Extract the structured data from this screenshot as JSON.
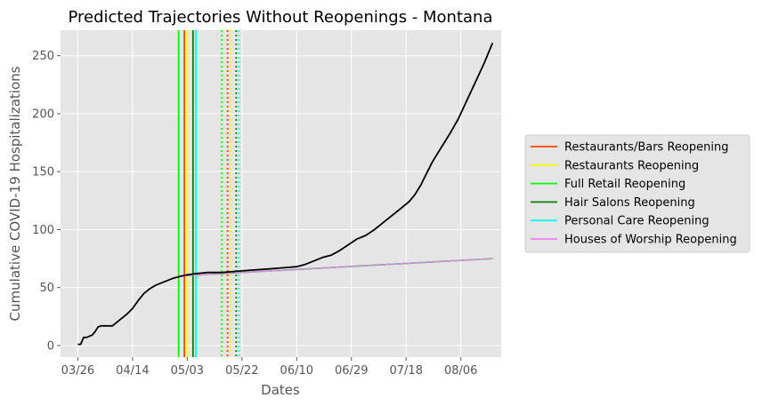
{
  "chart_data": {
    "type": "line",
    "title": "Predicted Trajectories Without Reopenings - Montana",
    "xlabel": "Dates",
    "ylabel": "Cumulative COVID-19 Hospitalizations",
    "x_tick_labels": [
      "03/26",
      "04/14",
      "05/03",
      "05/22",
      "06/10",
      "06/29",
      "07/18",
      "08/06"
    ],
    "x_tick_dates": [
      "2020-03-26",
      "2020-04-14",
      "2020-05-03",
      "2020-05-22",
      "2020-06-10",
      "2020-06-29",
      "2020-07-18",
      "2020-08-06"
    ],
    "xlim": [
      "2020-03-20",
      "2020-08-20"
    ],
    "y_ticks": [
      0,
      50,
      100,
      150,
      200,
      250
    ],
    "ylim": [
      -10,
      272
    ],
    "grid": true,
    "legend_position": "right",
    "series": [
      {
        "name": "",
        "color": "#000000",
        "style": "solid",
        "points": [
          [
            "2020-03-26",
            1
          ],
          [
            "2020-03-27",
            1
          ],
          [
            "2020-03-28",
            7
          ],
          [
            "2020-03-29",
            7
          ],
          [
            "2020-03-31",
            9
          ],
          [
            "2020-04-01",
            12
          ],
          [
            "2020-04-02",
            16
          ],
          [
            "2020-04-03",
            17
          ],
          [
            "2020-04-06",
            17
          ],
          [
            "2020-04-07",
            17
          ],
          [
            "2020-04-08",
            19
          ],
          [
            "2020-04-10",
            23
          ],
          [
            "2020-04-12",
            27
          ],
          [
            "2020-04-14",
            32
          ],
          [
            "2020-04-16",
            39
          ],
          [
            "2020-04-18",
            45
          ],
          [
            "2020-04-20",
            49
          ],
          [
            "2020-04-22",
            52
          ],
          [
            "2020-04-25",
            55
          ],
          [
            "2020-04-28",
            58
          ],
          [
            "2020-05-01",
            60
          ],
          [
            "2020-05-03",
            61
          ],
          [
            "2020-05-06",
            62
          ],
          [
            "2020-05-10",
            63
          ],
          [
            "2020-05-15",
            63
          ],
          [
            "2020-05-20",
            64
          ],
          [
            "2020-05-25",
            65
          ],
          [
            "2020-05-31",
            66
          ],
          [
            "2020-06-05",
            67
          ],
          [
            "2020-06-10",
            68
          ],
          [
            "2020-06-13",
            70
          ],
          [
            "2020-06-16",
            73
          ],
          [
            "2020-06-19",
            76
          ],
          [
            "2020-06-22",
            78
          ],
          [
            "2020-06-25",
            82
          ],
          [
            "2020-06-28",
            87
          ],
          [
            "2020-07-01",
            92
          ],
          [
            "2020-07-04",
            95
          ],
          [
            "2020-07-07",
            100
          ],
          [
            "2020-07-10",
            106
          ],
          [
            "2020-07-13",
            112
          ],
          [
            "2020-07-16",
            118
          ],
          [
            "2020-07-19",
            124
          ],
          [
            "2020-07-21",
            130
          ],
          [
            "2020-07-23",
            138
          ],
          [
            "2020-07-25",
            148
          ],
          [
            "2020-07-27",
            158
          ],
          [
            "2020-07-29",
            166
          ],
          [
            "2020-07-31",
            174
          ],
          [
            "2020-08-02",
            182
          ],
          [
            "2020-08-05",
            195
          ],
          [
            "2020-08-08",
            211
          ],
          [
            "2020-08-11",
            227
          ],
          [
            "2020-08-14",
            243
          ],
          [
            "2020-08-17",
            261
          ]
        ]
      },
      {
        "name": "",
        "color": "#999999",
        "style": "solid",
        "points": [
          [
            "2020-04-30",
            60
          ],
          [
            "2020-08-17",
            75
          ]
        ]
      },
      {
        "name": "Restaurants/Bars Reopening",
        "color": "#ff4500",
        "style": "dashed",
        "points": [
          [
            "2020-04-30",
            60
          ],
          [
            "2020-08-17",
            75
          ]
        ]
      },
      {
        "name": "Restaurants Reopening",
        "color": "#ffff00",
        "style": "dashed",
        "points": [
          [
            "2020-04-30",
            60
          ],
          [
            "2020-08-17",
            75
          ]
        ]
      },
      {
        "name": "Full Retail Reopening",
        "color": "#00ff00",
        "style": "dashed",
        "points": [
          [
            "2020-04-30",
            60
          ],
          [
            "2020-08-17",
            75
          ]
        ]
      },
      {
        "name": "Hair Salons Reopening",
        "color": "#008000",
        "style": "dashed",
        "points": [
          [
            "2020-04-30",
            60
          ],
          [
            "2020-08-17",
            75
          ]
        ]
      },
      {
        "name": "Personal Care Reopening",
        "color": "#00ffff",
        "style": "dashed",
        "points": [
          [
            "2020-04-30",
            60
          ],
          [
            "2020-08-17",
            75
          ]
        ]
      },
      {
        "name": "Houses of Worship Reopening",
        "color": "#ee82ee",
        "style": "dashed",
        "points": [
          [
            "2020-04-30",
            60
          ],
          [
            "2020-08-17",
            75
          ]
        ]
      }
    ],
    "vertical_lines": [
      {
        "date": "2020-04-30",
        "color": "#00ff00",
        "style": "solid"
      },
      {
        "date": "2020-05-02",
        "color": "#ff4500",
        "style": "solid"
      },
      {
        "date": "2020-05-03",
        "color": "#ffff00",
        "style": "solid"
      },
      {
        "date": "2020-05-05",
        "color": "#008000",
        "style": "solid"
      },
      {
        "date": "2020-05-06",
        "color": "#00ffff",
        "style": "solid"
      },
      {
        "date": "2020-05-15",
        "color": "#00ff00",
        "style": "dotted"
      },
      {
        "date": "2020-05-17",
        "color": "#ff4500",
        "style": "dotted"
      },
      {
        "date": "2020-05-18",
        "color": "#ffff00",
        "style": "dotted"
      },
      {
        "date": "2020-05-20",
        "color": "#008000",
        "style": "dotted"
      },
      {
        "date": "2020-05-21",
        "color": "#00ffff",
        "style": "dotted"
      }
    ]
  }
}
